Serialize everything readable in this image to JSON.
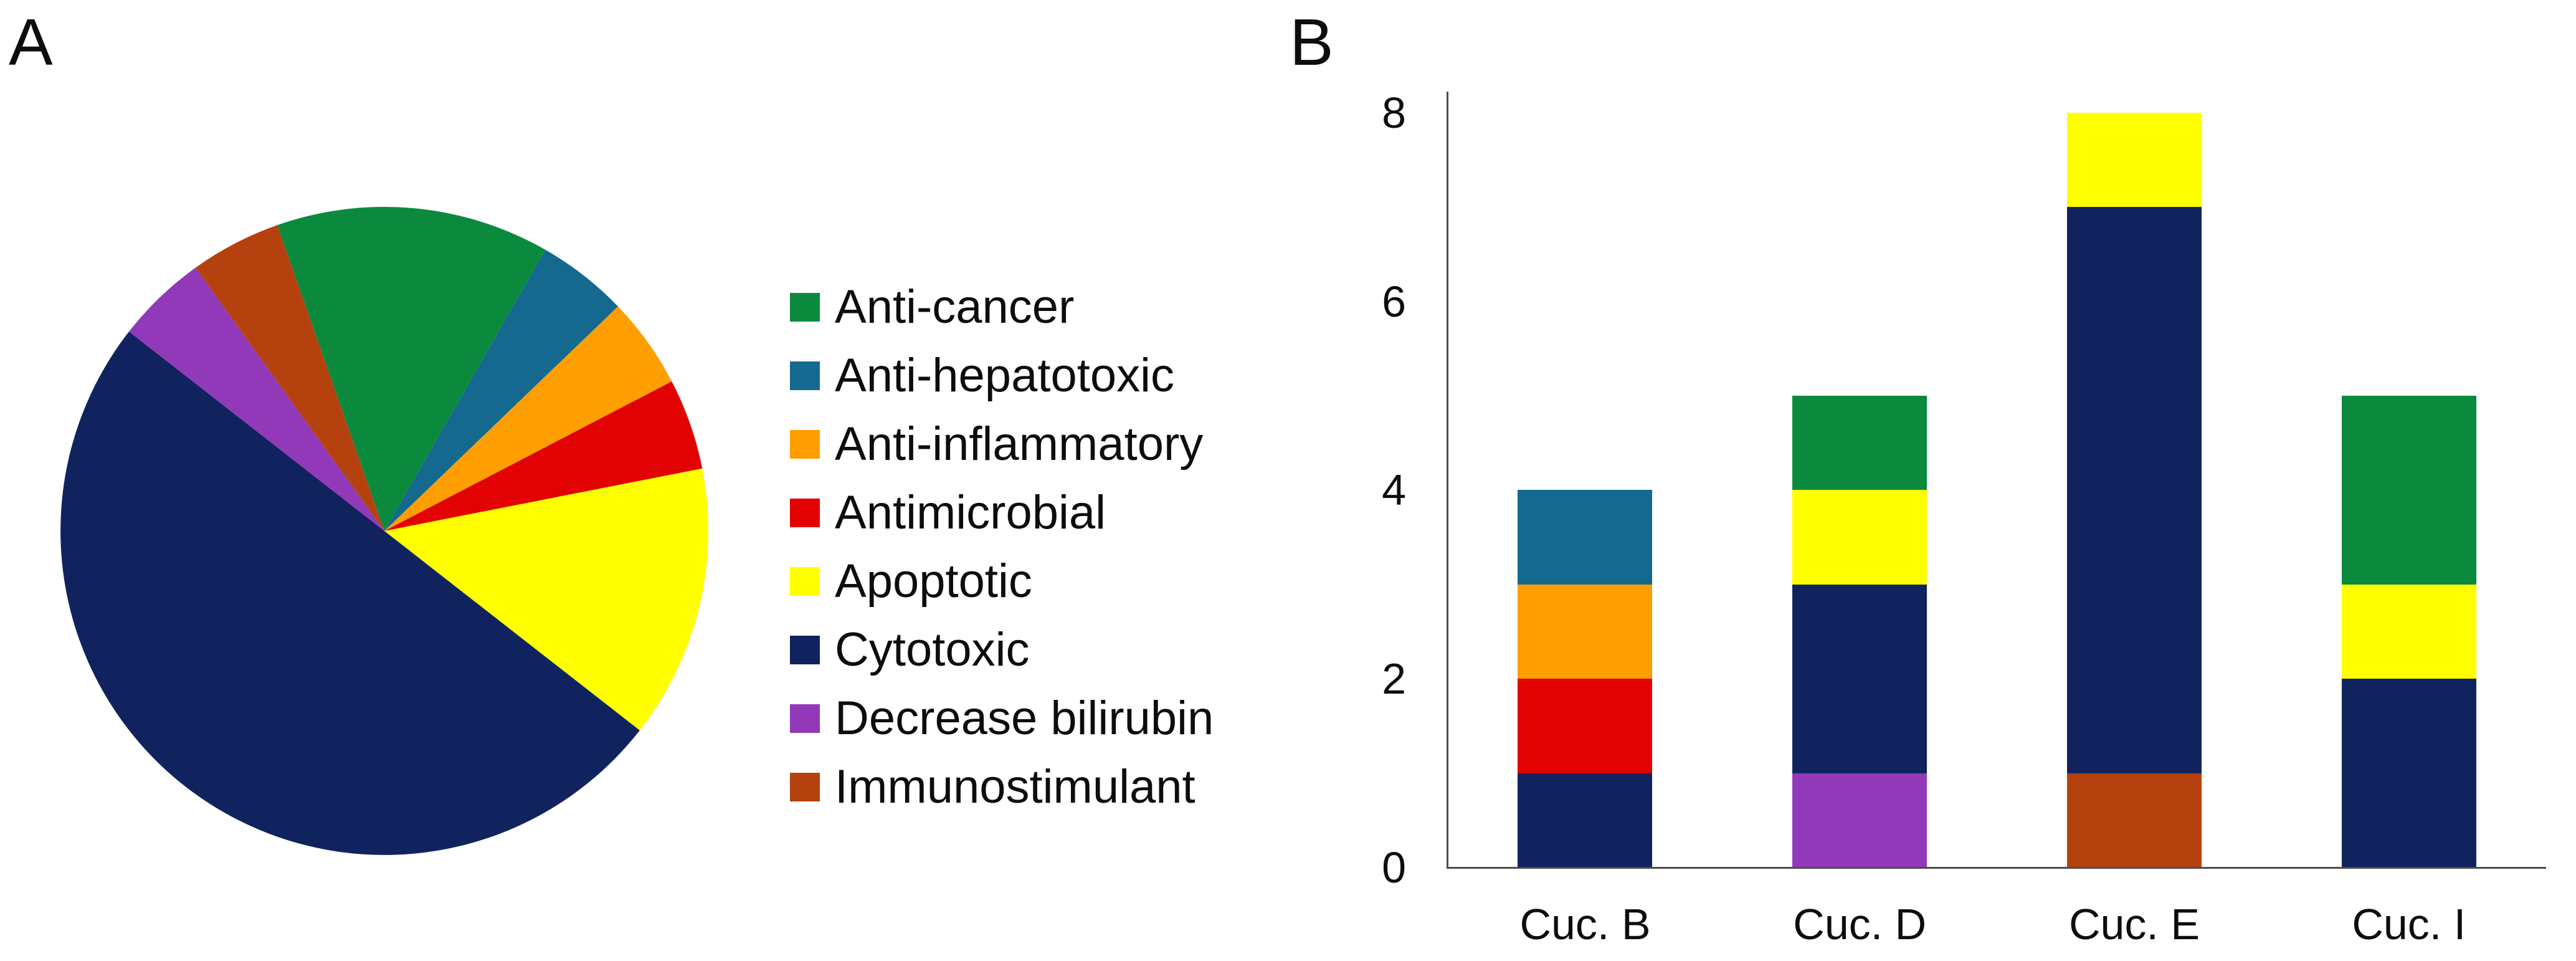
{
  "panels": {
    "a_label": "A",
    "b_label": "B"
  },
  "colors": {
    "anti_cancer": "#0B8A3E",
    "anti_hepatotoxic": "#15698E",
    "anti_inflammatory": "#FF9E00",
    "antimicrobial": "#E20202",
    "apoptotic": "#FFFF00",
    "cytotoxic": "#11235E",
    "decrease_bilirubin": "#9139B8",
    "immunostimulant": "#B5420E",
    "axis_line": "#4D4D4D",
    "text": "#000000"
  },
  "legend": {
    "items": [
      {
        "label": "Anti-cancer",
        "color_key": "anti_cancer"
      },
      {
        "label": "Anti-hepatotoxic",
        "color_key": "anti_hepatotoxic"
      },
      {
        "label": "Anti-inflammatory",
        "color_key": "anti_inflammatory"
      },
      {
        "label": "Antimicrobial",
        "color_key": "antimicrobial"
      },
      {
        "label": "Apoptotic",
        "color_key": "apoptotic"
      },
      {
        "label": "Cytotoxic",
        "color_key": "cytotoxic"
      },
      {
        "label": "Decrease bilirubin",
        "color_key": "decrease_bilirubin"
      },
      {
        "label": "Immunostimulant",
        "color_key": "immunostimulant"
      }
    ]
  },
  "chart_data": [
    {
      "type": "pie",
      "panel": "A",
      "title": "",
      "direction": "clockwise",
      "start_angle_deg": -19.3,
      "total": 22,
      "legend_position": "right",
      "slices": [
        {
          "label": "Anti-cancer",
          "value": 3,
          "color_key": "anti_cancer"
        },
        {
          "label": "Anti-hepatotoxic",
          "value": 1,
          "color_key": "anti_hepatotoxic"
        },
        {
          "label": "Anti-inflammatory",
          "value": 1,
          "color_key": "anti_inflammatory"
        },
        {
          "label": "Antimicrobial",
          "value": 1,
          "color_key": "antimicrobial"
        },
        {
          "label": "Apoptotic",
          "value": 3,
          "color_key": "apoptotic"
        },
        {
          "label": "Cytotoxic",
          "value": 11,
          "color_key": "cytotoxic"
        },
        {
          "label": "Decrease bilirubin",
          "value": 1,
          "color_key": "decrease_bilirubin"
        },
        {
          "label": "Immunostimulant",
          "value": 1,
          "color_key": "immunostimulant"
        }
      ]
    },
    {
      "type": "bar",
      "subtype": "stacked",
      "panel": "B",
      "title": "",
      "categories": [
        "Cuc. B",
        "Cuc. D",
        "Cuc. E",
        "Cuc. I"
      ],
      "y_ticks": [
        0,
        2,
        4,
        6,
        8
      ],
      "ylim": [
        0,
        8
      ],
      "grid": false,
      "segments_order": "bottom_to_top",
      "bars": [
        {
          "category": "Cuc. B",
          "total": 4,
          "segments": [
            {
              "color_key": "cytotoxic",
              "label": "Cytotoxic",
              "value": 1
            },
            {
              "color_key": "antimicrobial",
              "label": "Antimicrobial",
              "value": 1
            },
            {
              "color_key": "anti_inflammatory",
              "label": "Anti-inflammatory",
              "value": 1
            },
            {
              "color_key": "anti_hepatotoxic",
              "label": "Anti-hepatotoxic",
              "value": 1
            }
          ]
        },
        {
          "category": "Cuc. D",
          "total": 5,
          "segments": [
            {
              "color_key": "decrease_bilirubin",
              "label": "Decrease bilirubin",
              "value": 1
            },
            {
              "color_key": "cytotoxic",
              "label": "Cytotoxic",
              "value": 2
            },
            {
              "color_key": "apoptotic",
              "label": "Apoptotic",
              "value": 1
            },
            {
              "color_key": "anti_cancer",
              "label": "Anti-cancer",
              "value": 1
            }
          ]
        },
        {
          "category": "Cuc. E",
          "total": 8,
          "segments": [
            {
              "color_key": "immunostimulant",
              "label": "Immunostimulant",
              "value": 1
            },
            {
              "color_key": "cytotoxic",
              "label": "Cytotoxic",
              "value": 6
            },
            {
              "color_key": "apoptotic",
              "label": "Apoptotic",
              "value": 1
            }
          ]
        },
        {
          "category": "Cuc. I",
          "total": 5,
          "segments": [
            {
              "color_key": "cytotoxic",
              "label": "Cytotoxic",
              "value": 2
            },
            {
              "color_key": "apoptotic",
              "label": "Apoptotic",
              "value": 1
            },
            {
              "color_key": "anti_cancer",
              "label": "Anti-cancer",
              "value": 2
            }
          ]
        }
      ]
    }
  ]
}
